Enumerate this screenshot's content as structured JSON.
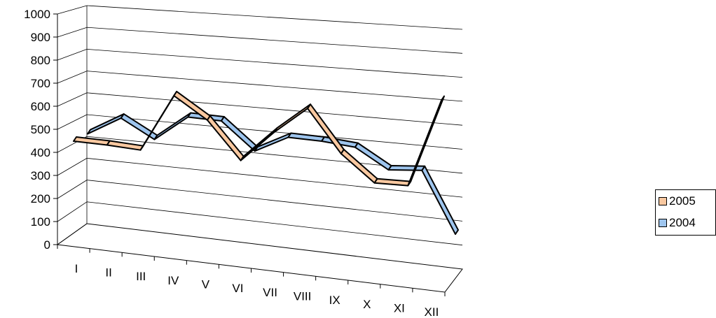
{
  "chart_data": {
    "type": "line",
    "categories": [
      "I",
      "II",
      "III",
      "IV",
      "V",
      "VI",
      "VII",
      "VIII",
      "IX",
      "X",
      "XI",
      "XII"
    ],
    "series": [
      {
        "name": "2005",
        "color": "#f9c8a0",
        "values": [
          440,
          440,
          435,
          690,
          600,
          440,
          580,
          700,
          520,
          410,
          415,
          800
        ]
      },
      {
        "name": "2004",
        "color": "#9ec5ee",
        "values": [
          430,
          520,
          440,
          560,
          560,
          440,
          520,
          520,
          510,
          425,
          440,
          170
        ]
      }
    ],
    "y_ticks": [
      "0",
      "100",
      "200",
      "300",
      "400",
      "500",
      "600",
      "700",
      "800",
      "900",
      "1000"
    ],
    "ylim": [
      0,
      1000
    ],
    "grid": true,
    "legend": {
      "position": "right",
      "items": [
        "2005",
        "2004"
      ]
    }
  }
}
